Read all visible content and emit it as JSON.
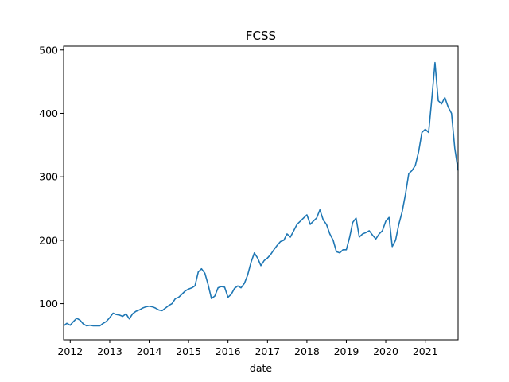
{
  "chart_data": {
    "type": "line",
    "title": "FCSS",
    "xlabel": "date",
    "ylabel": "",
    "xlim": [
      "2011-11-01",
      "2021-11-01"
    ],
    "ylim": [
      43,
      506
    ],
    "grid": false,
    "legend": false,
    "color": "#1f77b4",
    "x_ticks": [
      {
        "date": "2012-01-01",
        "label": "2012"
      },
      {
        "date": "2013-01-01",
        "label": "2013"
      },
      {
        "date": "2014-01-01",
        "label": "2014"
      },
      {
        "date": "2015-01-01",
        "label": "2015"
      },
      {
        "date": "2016-01-01",
        "label": "2016"
      },
      {
        "date": "2017-01-01",
        "label": "2017"
      },
      {
        "date": "2018-01-01",
        "label": "2018"
      },
      {
        "date": "2019-01-01",
        "label": "2019"
      },
      {
        "date": "2020-01-01",
        "label": "2020"
      },
      {
        "date": "2021-01-01",
        "label": "2021"
      }
    ],
    "y_ticks": [
      {
        "value": 100,
        "label": "100"
      },
      {
        "value": 200,
        "label": "200"
      },
      {
        "value": 300,
        "label": "300"
      },
      {
        "value": 400,
        "label": "400"
      },
      {
        "value": 500,
        "label": "500"
      }
    ],
    "series": [
      {
        "x": [
          "2011-11-01",
          "2011-12-01",
          "2012-01-01",
          "2012-02-01",
          "2012-03-01",
          "2012-04-01",
          "2012-05-01",
          "2012-06-01",
          "2012-07-01",
          "2012-08-01",
          "2012-09-01",
          "2012-10-01",
          "2012-11-01",
          "2012-12-01",
          "2013-01-01",
          "2013-02-01",
          "2013-03-01",
          "2013-04-01",
          "2013-05-01",
          "2013-06-01",
          "2013-07-01",
          "2013-08-01",
          "2013-09-01",
          "2013-10-01",
          "2013-11-01",
          "2013-12-01",
          "2014-01-01",
          "2014-02-01",
          "2014-03-01",
          "2014-04-01",
          "2014-05-01",
          "2014-06-01",
          "2014-07-01",
          "2014-08-01",
          "2014-09-01",
          "2014-10-01",
          "2014-11-01",
          "2014-12-01",
          "2015-01-01",
          "2015-02-01",
          "2015-03-01",
          "2015-04-01",
          "2015-05-01",
          "2015-06-01",
          "2015-07-01",
          "2015-08-01",
          "2015-09-01",
          "2015-10-01",
          "2015-11-01",
          "2015-12-01",
          "2016-01-01",
          "2016-02-01",
          "2016-03-01",
          "2016-04-01",
          "2016-05-01",
          "2016-06-01",
          "2016-07-01",
          "2016-08-01",
          "2016-09-01",
          "2016-10-01",
          "2016-11-01",
          "2016-12-01",
          "2017-01-01",
          "2017-02-01",
          "2017-03-01",
          "2017-04-01",
          "2017-05-01",
          "2017-06-01",
          "2017-07-01",
          "2017-08-01",
          "2017-09-01",
          "2017-10-01",
          "2017-11-01",
          "2017-12-01",
          "2018-01-01",
          "2018-02-01",
          "2018-03-01",
          "2018-04-01",
          "2018-05-01",
          "2018-06-01",
          "2018-07-01",
          "2018-08-01",
          "2018-09-01",
          "2018-10-01",
          "2018-11-01",
          "2018-12-01",
          "2019-01-01",
          "2019-02-01",
          "2019-03-01",
          "2019-04-01",
          "2019-05-01",
          "2019-06-01",
          "2019-07-01",
          "2019-08-01",
          "2019-09-01",
          "2019-10-01",
          "2019-11-01",
          "2019-12-01",
          "2020-01-01",
          "2020-02-01",
          "2020-03-01",
          "2020-04-01",
          "2020-05-01",
          "2020-06-01",
          "2020-07-01",
          "2020-08-01",
          "2020-09-01",
          "2020-10-01",
          "2020-11-01",
          "2020-12-01",
          "2021-01-01",
          "2021-02-01",
          "2021-03-01",
          "2021-04-01",
          "2021-05-01",
          "2021-06-01",
          "2021-07-01",
          "2021-08-01",
          "2021-09-01",
          "2021-10-01",
          "2021-11-01"
        ],
        "y": [
          65,
          69,
          66,
          72,
          77,
          74,
          68,
          65,
          66,
          65,
          65,
          65,
          69,
          72,
          78,
          85,
          83,
          82,
          80,
          84,
          76,
          84,
          88,
          90,
          93,
          95,
          96,
          95,
          93,
          90,
          89,
          93,
          97,
          100,
          108,
          110,
          115,
          120,
          123,
          125,
          128,
          150,
          155,
          148,
          130,
          108,
          112,
          125,
          127,
          126,
          110,
          115,
          124,
          128,
          125,
          132,
          145,
          165,
          180,
          172,
          160,
          168,
          172,
          178,
          185,
          192,
          198,
          200,
          210,
          205,
          215,
          225,
          230,
          235,
          240,
          225,
          230,
          235,
          248,
          232,
          225,
          210,
          200,
          182,
          180,
          185,
          185,
          205,
          228,
          235,
          205,
          210,
          212,
          215,
          208,
          202,
          210,
          215,
          230,
          236,
          190,
          200,
          225,
          245,
          272,
          305,
          310,
          318,
          340,
          370,
          375,
          370,
          420,
          480,
          420,
          415,
          425,
          410,
          400,
          345,
          310
        ]
      }
    ]
  }
}
